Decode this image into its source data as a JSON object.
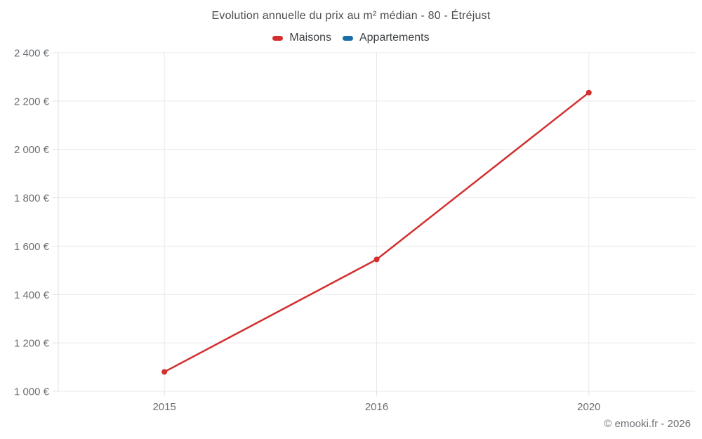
{
  "footer": {
    "credit": "© emooki.fr - 2026"
  },
  "chart_data": {
    "type": "line",
    "title": "Evolution annuelle du prix au m² médian - 80 - Étréjust",
    "categories": [
      "2015",
      "2016",
      "2020"
    ],
    "series": [
      {
        "name": "Maisons",
        "color": "#d32f2f",
        "values": [
          1080,
          1545,
          2235
        ]
      },
      {
        "name": "Appartements",
        "color": "#1b6ca8",
        "values": []
      }
    ],
    "xlabel": "",
    "ylabel": "",
    "ylim": [
      1000,
      2400
    ],
    "y_ticks": [
      {
        "value": 1000,
        "label": "1 000 €"
      },
      {
        "value": 1200,
        "label": "1 200 €"
      },
      {
        "value": 1400,
        "label": "1 400 €"
      },
      {
        "value": 1600,
        "label": "1 600 €"
      },
      {
        "value": 1800,
        "label": "1 800 €"
      },
      {
        "value": 2000,
        "label": "2 000 €"
      },
      {
        "value": 2200,
        "label": "2 200 €"
      },
      {
        "value": 2400,
        "label": "2 400 €"
      }
    ],
    "grid": true,
    "legend_position": "top",
    "colors": {
      "gridline": "#e9e9e9",
      "axis": "#e0e0e0",
      "tick_label": "#6b6f73"
    }
  }
}
